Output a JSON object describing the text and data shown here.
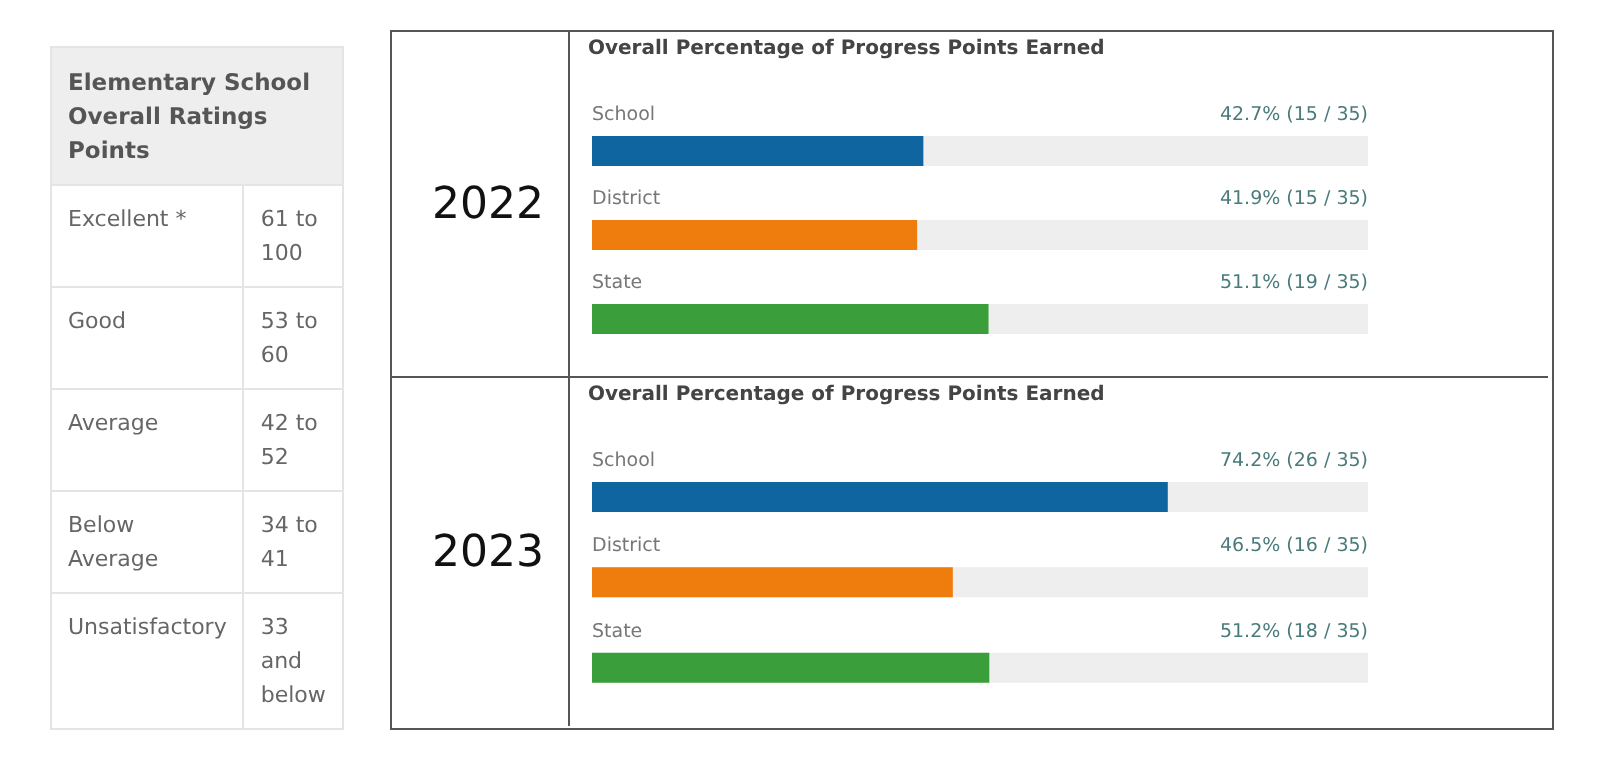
{
  "chart_data": [
    {
      "type": "other",
      "title": "Elementary School Overall Ratings Points",
      "annotations": [
        "Excellent *",
        "61 to 100",
        "Good",
        "53 to 60",
        "Average",
        "42 to 52",
        "Below Average",
        "34 to 41",
        "Unsatisfactory",
        "33 and below"
      ]
    },
    {
      "type": "bar",
      "orientation": "horizontal",
      "title": "Overall Percentage of Progress Points Earned",
      "annotations": [
        "2022"
      ],
      "categories": [
        "School",
        "District",
        "State"
      ],
      "values": [
        42.7,
        41.9,
        51.1
      ],
      "colors": [
        "#0e65a0",
        "#ef7d0d",
        "#3a9e3a"
      ],
      "value_labels": [
        "42.7%  (15 / 35)",
        "41.9%  (15 / 35)",
        "51.1%  (19 / 35)"
      ],
      "xlim": [
        0,
        100
      ],
      "tick_labels": false
    },
    {
      "type": "bar",
      "orientation": "horizontal",
      "title": "Overall Percentage of Progress Points Earned",
      "annotations": [
        "2023"
      ],
      "categories": [
        "School",
        "District",
        "State"
      ],
      "values": [
        74.2,
        46.5,
        51.2
      ],
      "colors": [
        "#0e65a0",
        "#ef7d0d",
        "#3a9e3a"
      ],
      "value_labels": [
        "74.2%  (26 / 35)",
        "46.5%  (16 / 35)",
        "51.2%  (18 / 35)"
      ],
      "xlim": [
        0,
        100
      ],
      "tick_labels": false
    }
  ]
}
